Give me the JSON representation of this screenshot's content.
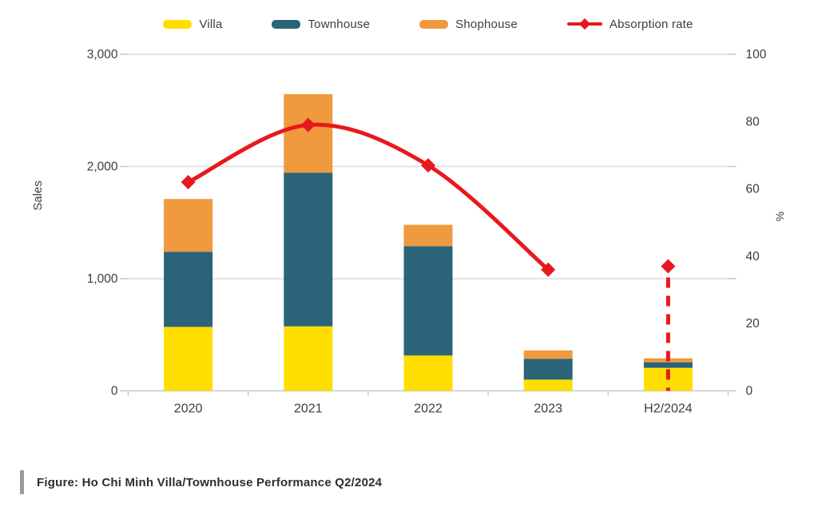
{
  "legend": {
    "items": [
      {
        "label": "Villa",
        "color": "#FFDE00",
        "marker": "swatch"
      },
      {
        "label": "Townhouse",
        "color": "#2B6478",
        "marker": "swatch"
      },
      {
        "label": "Shophouse",
        "color": "#F0993E",
        "marker": "swatch"
      },
      {
        "label": "Absorption rate",
        "color": "#E8191D",
        "marker": "line-diamond"
      }
    ]
  },
  "chart_data": {
    "type": "bar",
    "subtype": "stacked-columns-with-line-overlay",
    "categories": [
      "2020",
      "2021",
      "2022",
      "2023",
      "H2/2024"
    ],
    "series": [
      {
        "name": "Villa",
        "type": "bar",
        "color": "#FFDE00",
        "values": [
          570,
          575,
          315,
          100,
          205
        ]
      },
      {
        "name": "Townhouse",
        "type": "bar",
        "color": "#2B6478",
        "values": [
          670,
          1370,
          975,
          185,
          50
        ]
      },
      {
        "name": "Shophouse",
        "type": "bar",
        "color": "#F0993E",
        "values": [
          470,
          700,
          190,
          75,
          35
        ]
      },
      {
        "name": "Absorption rate",
        "type": "line",
        "yaxis": "right",
        "color": "#E8191D",
        "values": [
          62,
          79,
          67,
          36,
          37
        ],
        "connected_points": 4,
        "projected_point": {
          "index": 4,
          "style": "isolated-marker-with-dashed-drop-line"
        }
      }
    ],
    "left_axis": {
      "title": "Sales",
      "min": 0,
      "max": 3000,
      "tick_values": [
        0,
        1000,
        2000,
        3000
      ],
      "tick_labels": [
        "0",
        "1,000",
        "2,000",
        "3,000"
      ]
    },
    "right_axis": {
      "title": "%",
      "min": 0,
      "max": 100,
      "tick_values": [
        0,
        20,
        40,
        60,
        80,
        100
      ],
      "tick_labels": [
        "0",
        "20",
        "40",
        "60",
        "80",
        "100"
      ]
    },
    "grid": {
      "horizontal": true,
      "color": "#DCDCDC"
    },
    "legend_position": "top"
  },
  "caption": {
    "text": "Figure: Ho Chi Minh Villa/Townhouse Performance Q2/2024",
    "bar_color": "#9B9B9B"
  },
  "colors": {
    "background": "#FFFFFF",
    "text": "#3D3D3D",
    "axis_line": "#C6C6C6",
    "gridline": "#DCDCDC"
  }
}
